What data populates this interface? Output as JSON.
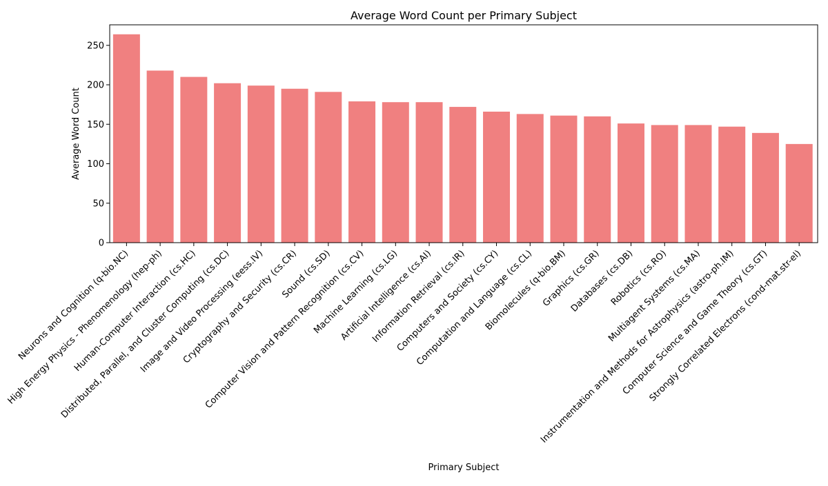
{
  "chart_data": {
    "type": "bar",
    "title": "Average Word Count per Primary Subject",
    "xlabel": "Primary Subject",
    "ylabel": "Average Word Count",
    "ylim": [
      0,
      276
    ],
    "yticks": [
      0,
      50,
      100,
      150,
      200,
      250
    ],
    "bar_color": "#f08080",
    "grid": false,
    "categories": [
      "Neurons and Cognition (q-bio.NC)",
      "High Energy Physics - Phenomenology (hep-ph)",
      "Human-Computer Interaction (cs.HC)",
      "Distributed, Parallel, and Cluster Computing (cs.DC)",
      "Image and Video Processing (eess.IV)",
      "Cryptography and Security (cs.CR)",
      "Sound (cs.SD)",
      "Computer Vision and Pattern Recognition (cs.CV)",
      "Machine Learning (cs.LG)",
      "Artificial Intelligence (cs.AI)",
      "Information Retrieval (cs.IR)",
      "Computers and Society (cs.CY)",
      "Computation and Language (cs.CL)",
      "Biomolecules (q-bio.BM)",
      "Graphics (cs.GR)",
      "Databases (cs.DB)",
      "Robotics (cs.RO)",
      "Multiagent Systems (cs.MA)",
      "Instrumentation and Methods for Astrophysics (astro-ph.IM)",
      "Computer Science and Game Theory (cs.GT)",
      "Strongly Correlated Electrons (cond-mat.str-el)"
    ],
    "values": [
      264,
      218,
      210,
      202,
      199,
      195,
      191,
      179,
      178,
      178,
      172,
      166,
      163,
      161,
      160,
      151,
      149,
      149,
      147,
      139,
      125
    ]
  }
}
